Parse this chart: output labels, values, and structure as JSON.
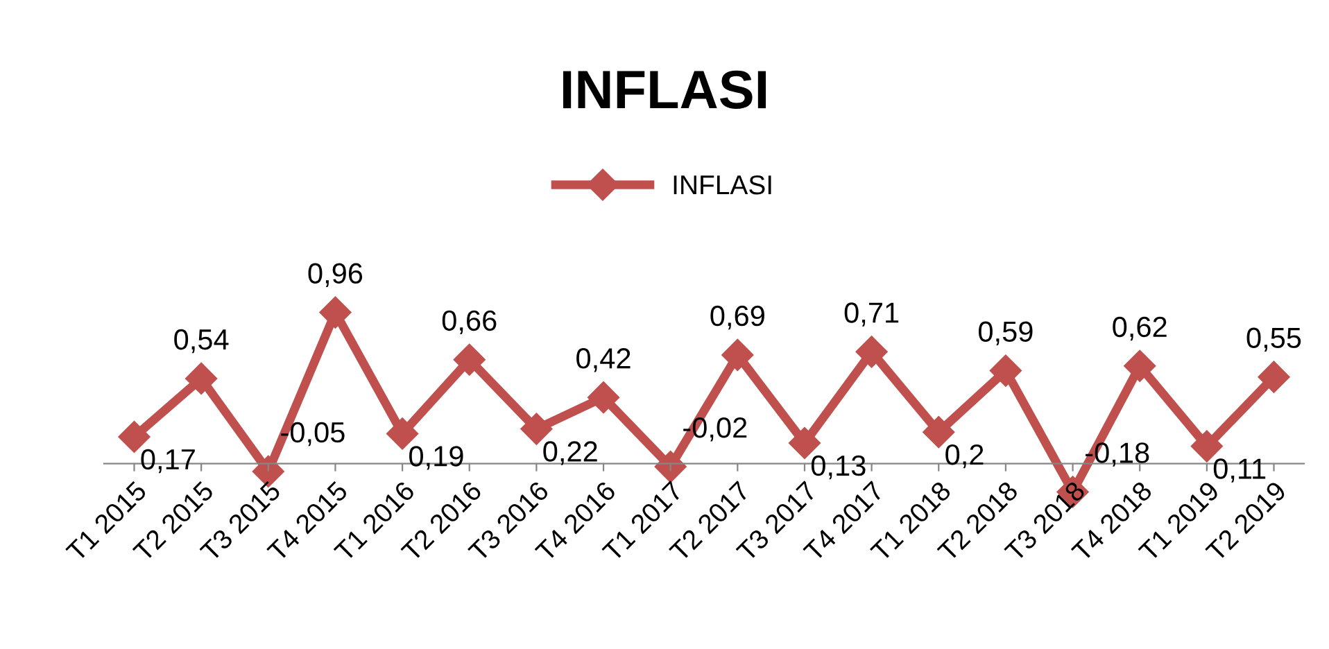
{
  "chart_data": {
    "type": "line",
    "title": "INFLASI",
    "categories": [
      "T1 2015",
      "T2 2015",
      "T3 2015",
      "T4 2015",
      "T1 2016",
      "T2 2016",
      "T3 2016",
      "T4 2016",
      "T1 2017",
      "T2 2017",
      "T3 2017",
      "T4 2017",
      "T1 2018",
      "T2 2018",
      "T3 2018",
      "T4 2018",
      "T1 2019",
      "T2 2019"
    ],
    "series": [
      {
        "name": "INFLASI",
        "color": "#c0504d",
        "values": [
          0.17,
          0.54,
          -0.05,
          0.96,
          0.19,
          0.66,
          0.22,
          0.42,
          -0.02,
          0.69,
          0.13,
          0.71,
          0.2,
          0.59,
          -0.18,
          0.62,
          0.11,
          0.55
        ],
        "value_labels": [
          "0,17",
          "0,54",
          "-0,05",
          "0,96",
          "0,19",
          "0,66",
          "0,22",
          "0,42",
          "-0,02",
          "0,69",
          "0,13",
          "0,71",
          "0,2",
          "0,59",
          "-0,18",
          "0,62",
          "0,11",
          "0,55"
        ]
      }
    ],
    "marker": "diamond",
    "line_style": "solid",
    "legend": "top",
    "grid": false
  }
}
